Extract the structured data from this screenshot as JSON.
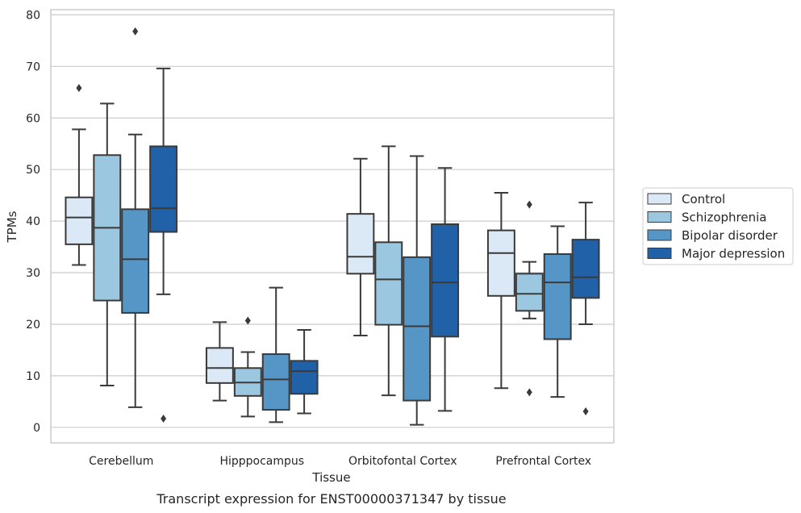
{
  "caption": "Transcript expression for ENST00000371347 by tissue",
  "chart_data": {
    "type": "boxplot",
    "xlabel": "Tissue",
    "ylabel": "TPMs",
    "ylim": [
      -3,
      81
    ],
    "yticks": [
      0,
      10,
      20,
      30,
      40,
      50,
      60,
      70,
      80
    ],
    "grid": "horizontal",
    "legend_position": "right",
    "categories": [
      "Cerebellum",
      "Hipppocampus",
      "Orbitofontal Cortex",
      "Prefrontal Cortex"
    ],
    "series": [
      {
        "name": "Control",
        "color": "#dbe9f6",
        "boxes": [
          {
            "whislo": 31.5,
            "q1": 35.5,
            "med": 40.7,
            "q3": 44.6,
            "whishi": 57.8,
            "fliers": [
              65.8
            ]
          },
          {
            "whislo": 5.2,
            "q1": 8.6,
            "med": 11.5,
            "q3": 15.4,
            "whishi": 20.4,
            "fliers": []
          },
          {
            "whislo": 17.8,
            "q1": 29.8,
            "med": 33.1,
            "q3": 41.4,
            "whishi": 52.1,
            "fliers": []
          },
          {
            "whislo": 7.6,
            "q1": 25.5,
            "med": 33.8,
            "q3": 38.2,
            "whishi": 45.5,
            "fliers": []
          }
        ]
      },
      {
        "name": "Schizophrenia",
        "color": "#9cc7e1",
        "boxes": [
          {
            "whislo": 8.1,
            "q1": 24.6,
            "med": 38.7,
            "q3": 52.8,
            "whishi": 62.8,
            "fliers": []
          },
          {
            "whislo": 2.1,
            "q1": 6.1,
            "med": 8.7,
            "q3": 11.5,
            "whishi": 14.6,
            "fliers": [
              20.7
            ]
          },
          {
            "whislo": 6.2,
            "q1": 19.9,
            "med": 28.7,
            "q3": 35.9,
            "whishi": 54.5,
            "fliers": []
          },
          {
            "whislo": 21.1,
            "q1": 22.6,
            "med": 25.9,
            "q3": 29.8,
            "whishi": 32.1,
            "fliers": [
              43.2,
              6.8
            ]
          }
        ]
      },
      {
        "name": "Bipolar disorder",
        "color": "#5596c6",
        "boxes": [
          {
            "whislo": 3.9,
            "q1": 22.2,
            "med": 32.6,
            "q3": 42.3,
            "whishi": 56.8,
            "fliers": [
              76.8
            ]
          },
          {
            "whislo": 1.0,
            "q1": 3.4,
            "med": 9.3,
            "q3": 14.2,
            "whishi": 27.1,
            "fliers": []
          },
          {
            "whislo": 0.5,
            "q1": 5.2,
            "med": 19.6,
            "q3": 33.0,
            "whishi": 52.6,
            "fliers": []
          },
          {
            "whislo": 5.9,
            "q1": 17.1,
            "med": 28.1,
            "q3": 33.6,
            "whishi": 39.0,
            "fliers": []
          }
        ]
      },
      {
        "name": "Major depression",
        "color": "#2161a8",
        "boxes": [
          {
            "whislo": 25.8,
            "q1": 37.9,
            "med": 42.5,
            "q3": 54.5,
            "whishi": 69.6,
            "fliers": [
              1.7
            ]
          },
          {
            "whislo": 2.7,
            "q1": 6.5,
            "med": 10.9,
            "q3": 12.9,
            "whishi": 18.9,
            "fliers": []
          },
          {
            "whislo": 3.2,
            "q1": 17.6,
            "med": 28.1,
            "q3": 39.4,
            "whishi": 50.3,
            "fliers": []
          },
          {
            "whislo": 20.0,
            "q1": 25.1,
            "med": 29.1,
            "q3": 36.4,
            "whishi": 43.6,
            "fliers": [
              3.1
            ]
          }
        ]
      }
    ]
  }
}
